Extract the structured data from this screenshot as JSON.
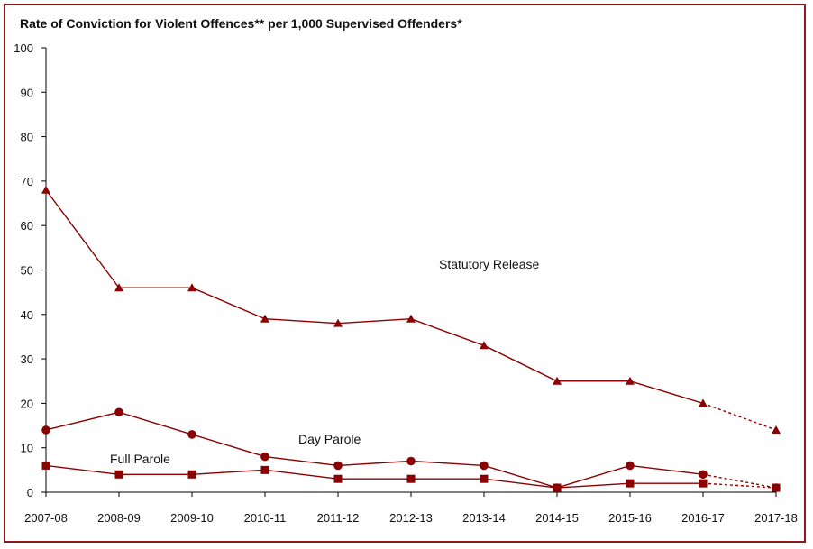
{
  "colors": {
    "series": "#8B0000",
    "axis": "#000000",
    "frame": "#8B1A1A"
  },
  "chart_data": {
    "type": "line",
    "title": "Rate of Conviction for Violent Offences** per 1,000 Supervised Offenders*",
    "xlabel": "",
    "ylabel": "",
    "ylim": [
      0,
      100
    ],
    "yticks": [
      0,
      10,
      20,
      30,
      40,
      50,
      60,
      70,
      80,
      90,
      100
    ],
    "categories": [
      "2007-08",
      "2008-09",
      "2009-10",
      "2010-11",
      "2011-12",
      "2012-13",
      "2013-14",
      "2014-15",
      "2015-16",
      "2016-17",
      "2017-18"
    ],
    "grid": false,
    "series": [
      {
        "name": "Statutory Release",
        "marker": "triangle",
        "values": [
          68,
          46,
          46,
          39,
          38,
          39,
          33,
          25,
          25,
          20,
          14
        ],
        "dotted_from_index": 9
      },
      {
        "name": "Day Parole",
        "marker": "circle",
        "values": [
          14,
          18,
          13,
          8,
          6,
          7,
          6,
          1,
          6,
          4,
          1
        ],
        "dotted_from_index": 9
      },
      {
        "name": "Full Parole",
        "marker": "square",
        "values": [
          6,
          4,
          4,
          5,
          3,
          3,
          3,
          1,
          2,
          2,
          1
        ],
        "dotted_from_index": 9
      }
    ]
  }
}
